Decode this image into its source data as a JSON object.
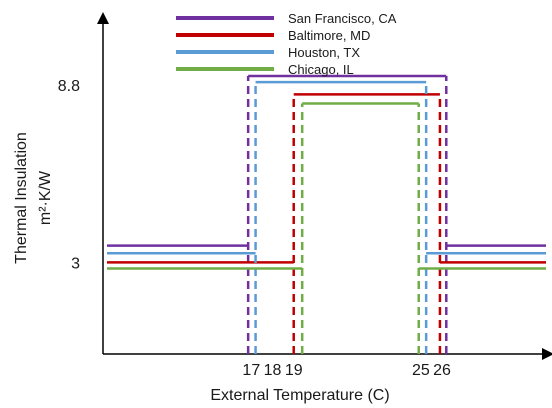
{
  "chart_data": {
    "type": "line",
    "title": "",
    "xlabel": "External Temperature (C)",
    "ylabel": "Thermal Insulation",
    "ylabel_unit": "m²·K/W",
    "xlim": [
      10,
      31
    ],
    "ylim": [
      0,
      11
    ],
    "x_ticks": [
      17,
      18,
      19,
      25,
      26
    ],
    "y_ticks": [
      3,
      8.8
    ],
    "grid": false,
    "legend_position": "top",
    "series": [
      {
        "name": "San Francisco, CA",
        "color": "#7030a0",
        "low": 3.55,
        "high": 9.1,
        "from": 16.85,
        "to": 26.2
      },
      {
        "name": "Baltimore, MD",
        "color": "#c00000",
        "low": 3.0,
        "high": 8.5,
        "from": 19.0,
        "to": 25.9
      },
      {
        "name": "Houston, TX",
        "color": "#5b9bd5",
        "low": 3.3,
        "high": 8.9,
        "from": 17.2,
        "to": 25.25
      },
      {
        "name": "Chicago, IL",
        "color": "#70ad47",
        "low": 2.8,
        "high": 8.2,
        "from": 19.4,
        "to": 24.9
      }
    ]
  }
}
